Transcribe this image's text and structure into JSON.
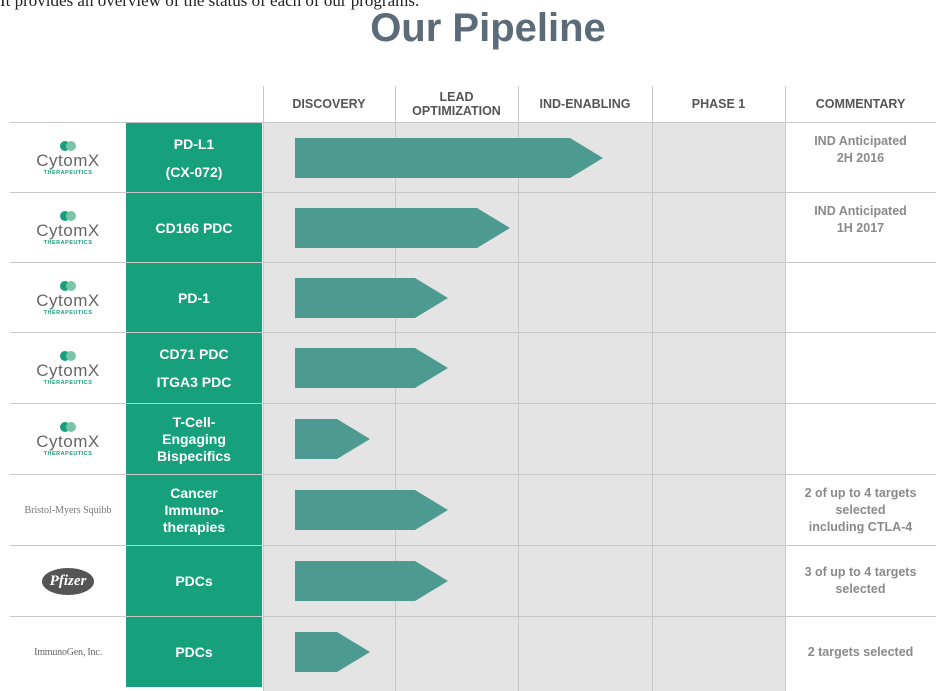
{
  "intro": "It provides an overview of the status of each of our programs.",
  "title": "Our Pipeline",
  "columns": [
    "DISCOVERY",
    "LEAD OPTIMIZATION",
    "IND-ENABLING",
    "PHASE 1",
    "COMMENTARY"
  ],
  "rows": [
    {
      "partner": [
        "CytomX",
        "THERAPEUTICS"
      ],
      "program": [
        "PD-L1",
        "(CX-072)"
      ],
      "commentary": [
        "IND Anticipated",
        "2H 2016"
      ]
    },
    {
      "partner": [
        "CytomX",
        "THERAPEUTICS"
      ],
      "program": [
        "CD166 PDC"
      ],
      "commentary": [
        "IND Anticipated",
        "1H 2017"
      ]
    },
    {
      "partner": [
        "CytomX",
        "THERAPEUTICS"
      ],
      "program": [
        "PD-1"
      ]
    },
    {
      "partner": [
        "CytomX",
        "THERAPEUTICS"
      ],
      "program": [
        "CD71 PDC",
        "ITGA3 PDC"
      ]
    },
    {
      "partner": [
        "CytomX",
        "THERAPEUTICS"
      ],
      "program": [
        "T-Cell-",
        "Engaging",
        "Bispecifics"
      ]
    },
    {
      "partner": [
        "Bristol-Myers Squibb"
      ],
      "program": [
        "Cancer",
        "Immuno-",
        "therapies"
      ],
      "commentary": [
        "2 of up to 4 targets",
        "selected",
        "including CTLA-4"
      ]
    },
    {
      "partner": [
        "Pfizer"
      ],
      "program": [
        "PDCs"
      ],
      "commentary": [
        "3 of up to 4 targets",
        "selected"
      ]
    },
    {
      "partner": [
        "ImmunoGen, Inc."
      ],
      "program": [
        "PDCs"
      ],
      "commentary": [
        "2 targets selected"
      ]
    }
  ]
}
